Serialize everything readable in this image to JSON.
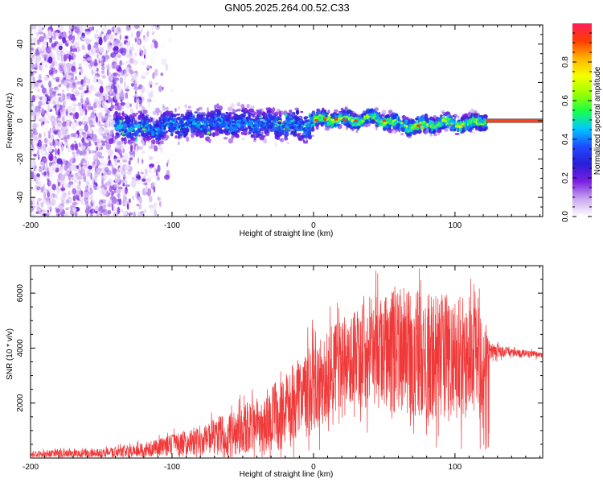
{
  "title": "GN05.2025.264.00.52.C33",
  "colors": {
    "snr_line": "#f03a3a",
    "axis": "#000000",
    "colorbar_stops": [
      "#ffffff",
      "#c9a6f0",
      "#7a1fe0",
      "#2a1ed8",
      "#1f4cff",
      "#00c8ff",
      "#18ff4a",
      "#9aff00",
      "#f5ff00",
      "#ffb400",
      "#ff3c00",
      "#ff1e5a"
    ]
  },
  "chart_data": [
    {
      "type": "heatmap",
      "name": "spectrogram",
      "xlabel": "Height of straight line (km)",
      "ylabel": "Frequency (Hz)",
      "xlim": [
        -200,
        162
      ],
      "ylim": [
        -50,
        50
      ],
      "xticks": [
        -200,
        -100,
        0,
        100
      ],
      "xtick_labels": [
        "-200",
        "-100",
        "0",
        "100"
      ],
      "yticks": [
        -40,
        -20,
        0,
        20,
        40
      ],
      "ytick_labels": [
        "-40",
        "-20",
        "0",
        "20",
        "40"
      ],
      "colorbar_label": "Normalized spectral amplitude",
      "colorbar_range": [
        0,
        1
      ],
      "colorbar_ticks": [
        0.0,
        0.2,
        0.4,
        0.6,
        0.8
      ],
      "colorbar_tick_labels": [
        "0.0",
        "0.2",
        "0.4",
        "0.6",
        "0.8"
      ],
      "noise_region_x": [
        -200,
        -110
      ],
      "tracked_band_x": [
        -140,
        122
      ],
      "steady_band_x": [
        122,
        162
      ],
      "steady_band_freq": 0,
      "band_centre_freq": [
        {
          "x": -140,
          "f": -3
        },
        {
          "x": -110,
          "f": -4
        },
        {
          "x": -100,
          "f": -2
        },
        {
          "x": -60,
          "f": -1
        },
        {
          "x": -20,
          "f": -2
        },
        {
          "x": -5,
          "f": -3
        },
        {
          "x": 0,
          "f": 0
        },
        {
          "x": 10,
          "f": 1
        },
        {
          "x": 30,
          "f": 0
        },
        {
          "x": 40,
          "f": 2
        },
        {
          "x": 55,
          "f": -1
        },
        {
          "x": 70,
          "f": -3
        },
        {
          "x": 90,
          "f": -1
        },
        {
          "x": 110,
          "f": -2
        },
        {
          "x": 122,
          "f": 0
        }
      ]
    },
    {
      "type": "line",
      "name": "snr",
      "xlabel": "Height of straight line (km)",
      "ylabel": "SNR (10 * v/v)",
      "xlim": [
        -200,
        162
      ],
      "ylim": [
        0,
        7000
      ],
      "xticks": [
        -200,
        -100,
        0,
        100
      ],
      "xtick_labels": [
        "-200",
        "-100",
        "0",
        "100"
      ],
      "yticks": [
        2000,
        4000,
        6000
      ],
      "ytick_labels": [
        "2000",
        "4000",
        "6000"
      ],
      "series": [
        {
          "name": "SNR",
          "envelope": [
            {
              "x": -200,
              "base": 150,
              "spread": 120
            },
            {
              "x": -150,
              "base": 180,
              "spread": 150
            },
            {
              "x": -120,
              "base": 300,
              "spread": 250
            },
            {
              "x": -100,
              "base": 450,
              "spread": 400
            },
            {
              "x": -80,
              "base": 650,
              "spread": 550
            },
            {
              "x": -60,
              "base": 900,
              "spread": 800
            },
            {
              "x": -40,
              "base": 1200,
              "spread": 1000
            },
            {
              "x": -20,
              "base": 1700,
              "spread": 1400
            },
            {
              "x": 0,
              "base": 2600,
              "spread": 1700
            },
            {
              "x": 20,
              "base": 3500,
              "spread": 1600
            },
            {
              "x": 40,
              "base": 3800,
              "spread": 2000
            },
            {
              "x": 60,
              "base": 3900,
              "spread": 2300
            },
            {
              "x": 80,
              "base": 3800,
              "spread": 2400
            },
            {
              "x": 100,
              "base": 3700,
              "spread": 2300
            },
            {
              "x": 118,
              "base": 3600,
              "spread": 2300
            },
            {
              "x": 124,
              "base": 3900,
              "spread": 300
            },
            {
              "x": 140,
              "base": 3850,
              "spread": 150
            },
            {
              "x": 162,
              "base": 3750,
              "spread": 120
            }
          ],
          "peak_value": 6900,
          "minimum_value": 300
        }
      ]
    }
  ]
}
